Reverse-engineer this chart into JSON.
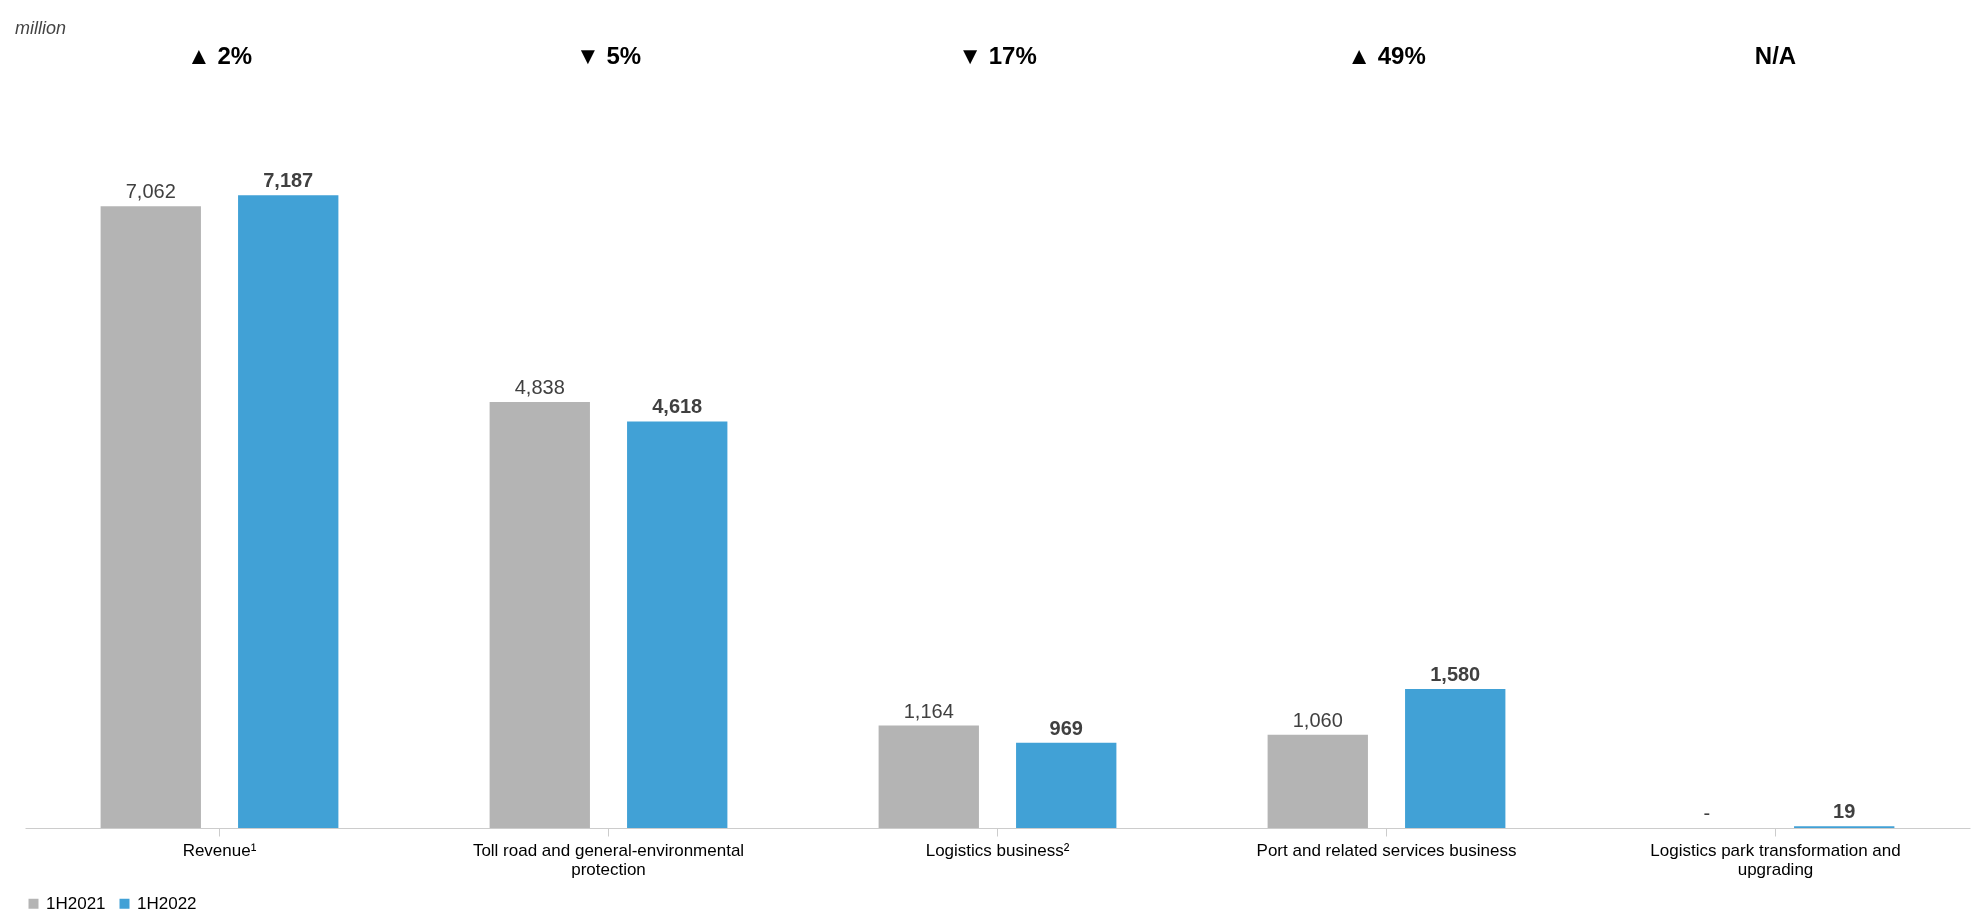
{
  "chart_data": {
    "type": "bar",
    "categories": [
      "Revenue¹",
      "Toll road and general-environmental protection",
      "Logistics business²",
      "Port and related services business",
      "Logistics park transformation and upgrading"
    ],
    "series": [
      {
        "name": "1H2021",
        "color": "#b4b4b4",
        "values": [
          7062,
          4838,
          1164,
          1060,
          null
        ],
        "value_labels": [
          "7,062",
          "4,838",
          "1,164",
          "1,060",
          "-"
        ]
      },
      {
        "name": "1H2022",
        "color": "#41a1d6",
        "values": [
          7187,
          4618,
          969,
          1580,
          19
        ],
        "value_labels": [
          "7,187",
          "4,618",
          "969",
          "1,580",
          "19"
        ]
      }
    ],
    "annotations": [
      "▲ 2%",
      "▼ 5%",
      "▼ 17%",
      "▲ 49%",
      "N/A",
      "million"
    ],
    "legend": "bottom",
    "grid": false
  }
}
